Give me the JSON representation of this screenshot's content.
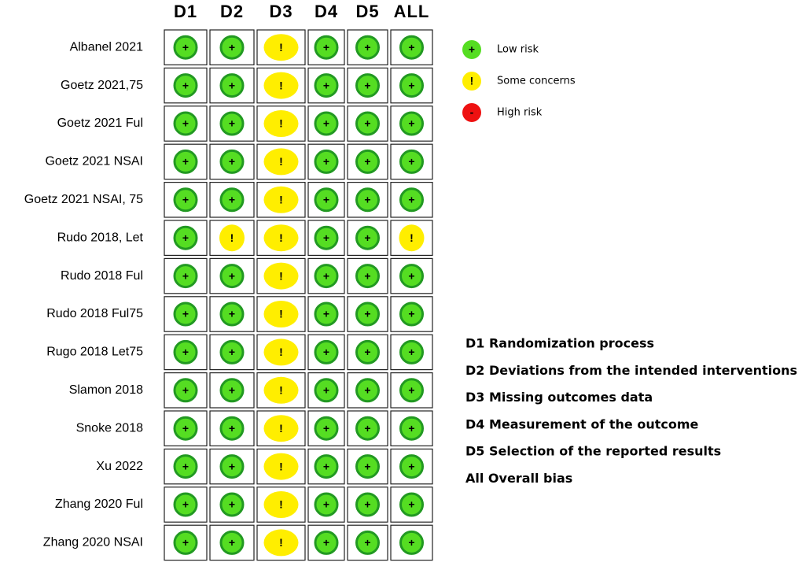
{
  "columns": [
    "D1",
    "D2",
    "D3",
    "D4",
    "D5",
    "ALL"
  ],
  "rows": [
    {
      "study": "Albanel 2021",
      "judgements": [
        "+",
        "+",
        "!",
        "+",
        "+",
        "+"
      ]
    },
    {
      "study": "Goetz 2021,75",
      "judgements": [
        "+",
        "+",
        "!",
        "+",
        "+",
        "+"
      ]
    },
    {
      "study": "Goetz 2021 Ful",
      "judgements": [
        "+",
        "+",
        "!",
        "+",
        "+",
        "+"
      ]
    },
    {
      "study": "Goetz 2021 NSAI",
      "judgements": [
        "+",
        "+",
        "!",
        "+",
        "+",
        "+"
      ]
    },
    {
      "study": "Goetz 2021 NSAI, 75",
      "judgements": [
        "+",
        "+",
        "!",
        "+",
        "+",
        "+"
      ]
    },
    {
      "study": "Rudo 2018, Let",
      "judgements": [
        "+",
        "!",
        "!",
        "+",
        "+",
        "!"
      ]
    },
    {
      "study": "Rudo 2018 Ful",
      "judgements": [
        "+",
        "+",
        "!",
        "+",
        "+",
        "+"
      ]
    },
    {
      "study": "Rudo 2018 Ful75",
      "judgements": [
        "+",
        "+",
        "!",
        "+",
        "+",
        "+"
      ]
    },
    {
      "study": "Rugo 2018 Let75",
      "judgements": [
        "+",
        "+",
        "!",
        "+",
        "+",
        "+"
      ]
    },
    {
      "study": "Slamon 2018",
      "judgements": [
        "+",
        "+",
        "!",
        "+",
        "+",
        "+"
      ]
    },
    {
      "study": "Snoke 2018",
      "judgements": [
        "+",
        "+",
        "!",
        "+",
        "+",
        "+"
      ]
    },
    {
      "study": "Xu 2022",
      "judgements": [
        "+",
        "+",
        "!",
        "+",
        "+",
        "+"
      ]
    },
    {
      "study": "Zhang 2020 Ful",
      "judgements": [
        "+",
        "+",
        "!",
        "+",
        "+",
        "+"
      ]
    },
    {
      "study": "Zhang 2020 NSAI",
      "judgements": [
        "+",
        "+",
        "!",
        "+",
        "+",
        "+"
      ]
    }
  ],
  "legend": [
    {
      "symbol": "+",
      "label": "Low risk",
      "color": "#55dd22"
    },
    {
      "symbol": "!",
      "label": "Some concerns",
      "color": "#ffee00"
    },
    {
      "symbol": "-",
      "label": "High risk",
      "color": "#ee1111"
    }
  ],
  "domains": [
    "D1 Randomization process",
    "D2 Deviations from the intended interventions",
    "D3 Missing outcomes data",
    "D4 Measurement of the outcome",
    "D5 Selection of the reported results",
    "All Overall bias"
  ]
}
